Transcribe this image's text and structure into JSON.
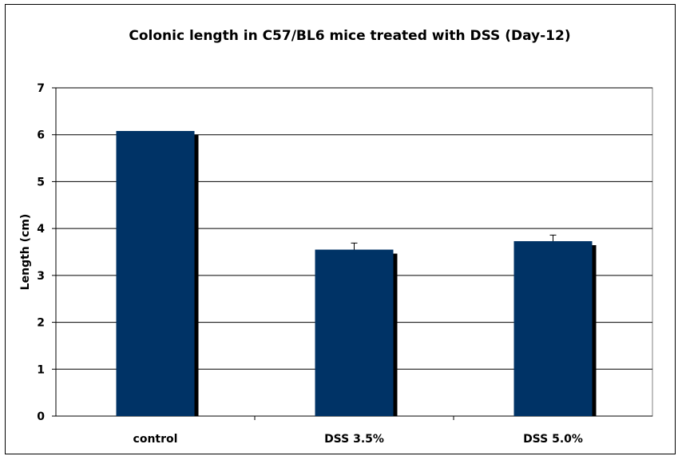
{
  "chart_data": {
    "type": "bar",
    "title": "Colonic length in C57/BL6 mice treated with DSS (Day-12)",
    "xlabel": "",
    "ylabel": "Length (cm)",
    "ylim": [
      0,
      7
    ],
    "yticks": [
      0,
      1,
      2,
      3,
      4,
      5,
      6,
      7
    ],
    "grid": true,
    "legend": "none",
    "categories": [
      "control",
      "DSS 3.5%",
      "DSS 5.0%"
    ],
    "values": [
      6.08,
      3.55,
      3.73
    ],
    "errors": [
      0,
      0.14,
      0.13
    ],
    "bar_color": "#003366"
  }
}
